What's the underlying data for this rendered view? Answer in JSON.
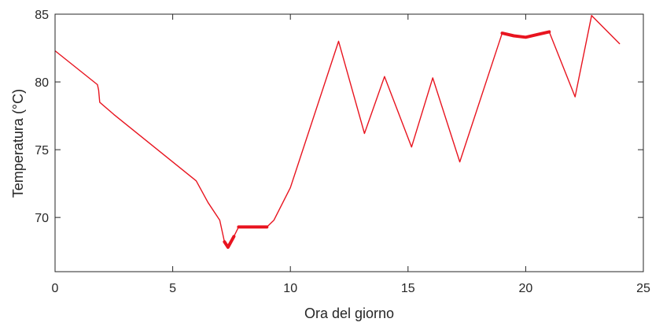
{
  "chart_data": {
    "type": "line",
    "title": "",
    "xlabel": "Ora del giorno",
    "ylabel": "Temperatura (°C)",
    "xlim": [
      0,
      25
    ],
    "ylim": [
      66,
      85
    ],
    "xticks": [
      0,
      5,
      10,
      15,
      20,
      25
    ],
    "yticks": [
      70,
      75,
      80,
      85
    ],
    "x_tick_labels": [
      "0",
      "5",
      "10",
      "15",
      "20",
      "25"
    ],
    "y_tick_labels": [
      "70",
      "75",
      "80",
      "85"
    ],
    "grid": false,
    "box": true,
    "series": [
      {
        "color": "#e8141f",
        "x": [
          0,
          1.8,
          1.85,
          1.9,
          2.5,
          6.0,
          6.5,
          7.0,
          7.2,
          7.35,
          7.6,
          7.8,
          8.0,
          8.5,
          9.0,
          9.3,
          10.0,
          12.05,
          13.15,
          14.0,
          15.15,
          16.05,
          17.2,
          19.0,
          19.5,
          20.0,
          20.5,
          21.0,
          22.1,
          22.8,
          24.0
        ],
        "y": [
          82.3,
          79.8,
          79.4,
          78.5,
          77.6,
          72.7,
          71.1,
          69.8,
          68.2,
          67.8,
          68.6,
          69.3,
          69.3,
          69.3,
          69.3,
          69.8,
          72.2,
          83.0,
          76.2,
          80.4,
          75.2,
          80.3,
          74.1,
          83.6,
          83.4,
          83.3,
          83.5,
          83.7,
          78.9,
          84.9,
          82.8
        ]
      }
    ]
  }
}
